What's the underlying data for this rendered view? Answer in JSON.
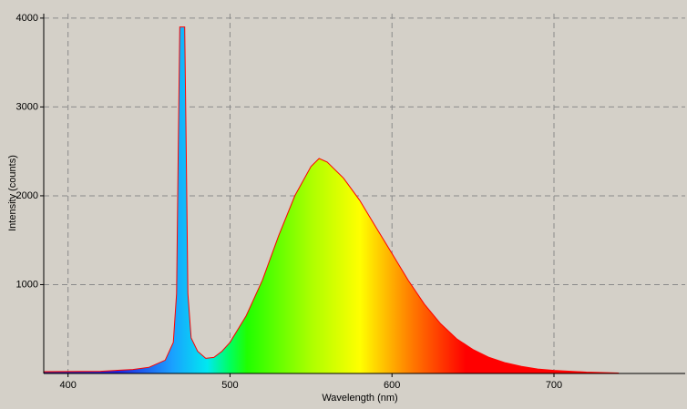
{
  "chart_data": {
    "type": "area",
    "x_label": "Wavelength (nm)",
    "y_label": "Intensity (counts)",
    "x": [
      385,
      420,
      440,
      450,
      460,
      465,
      467,
      468,
      469,
      472,
      473,
      474,
      476,
      480,
      485,
      490,
      495,
      500,
      510,
      520,
      530,
      540,
      550,
      555,
      560,
      570,
      580,
      590,
      600,
      610,
      620,
      630,
      640,
      650,
      660,
      670,
      680,
      690,
      700,
      720,
      740
    ],
    "values": [
      20,
      25,
      45,
      70,
      150,
      350,
      900,
      2500,
      3900,
      3900,
      2500,
      900,
      400,
      250,
      170,
      180,
      250,
      350,
      650,
      1050,
      1550,
      2000,
      2330,
      2420,
      2380,
      2200,
      1950,
      1650,
      1350,
      1050,
      780,
      560,
      390,
      270,
      180,
      120,
      80,
      50,
      35,
      15,
      5
    ],
    "color": "#ff0000",
    "xlim": [
      385,
      781
    ],
    "ylim": [
      0,
      4050
    ],
    "xticks": [
      400,
      500,
      600,
      700
    ],
    "yticks": [
      1000,
      2000,
      3000,
      4000
    ],
    "grid": true
  }
}
